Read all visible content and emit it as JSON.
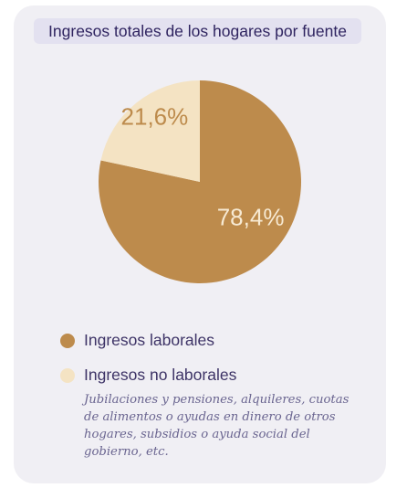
{
  "chart_data": {
    "type": "pie",
    "title": "Ingresos totales de los hogares por fuente",
    "slices": [
      {
        "name": "Ingresos laborales",
        "value": 78.4,
        "label": "78,4%",
        "color": "#bd8b4c",
        "label_color": "#f7ead3"
      },
      {
        "name": "Ingresos no laborales",
        "value": 21.6,
        "label": "21,6%",
        "color": "#f4e3c3",
        "label_color": "#bd8b4c"
      }
    ],
    "legend": [
      "Ingresos laborales",
      "Ingresos no laborales"
    ],
    "legend_placement": "bottom",
    "note": "Jubilaciones y pensiones, alquileres, cuotas de alimentos o ayudas en dinero de otros hogares, subsidios o ayuda social del gobierno, etc."
  }
}
